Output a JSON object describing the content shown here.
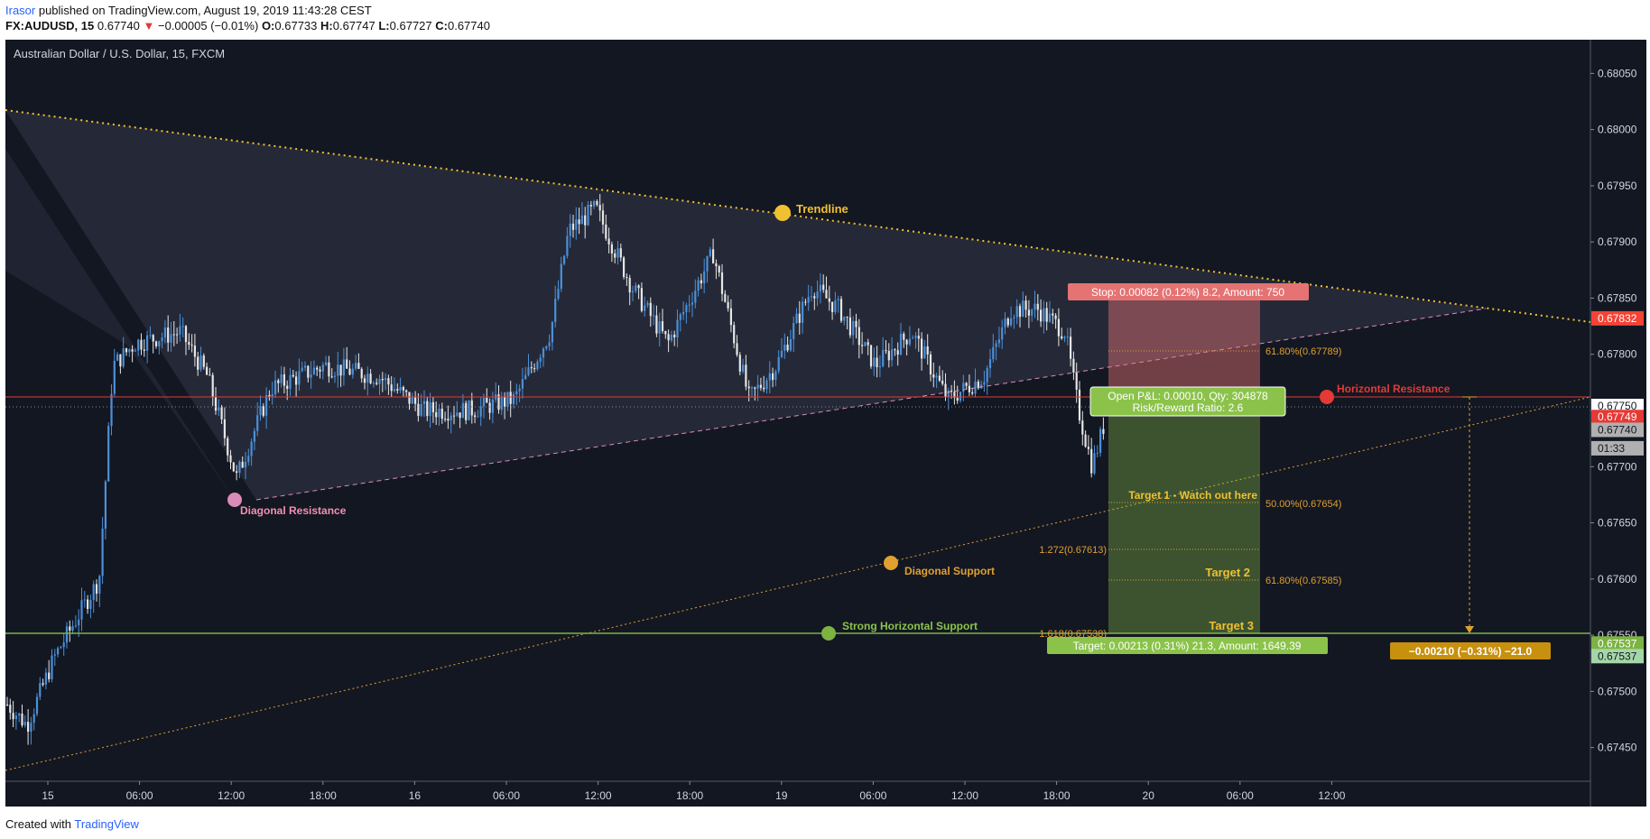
{
  "header": {
    "user": "Irasor",
    "published": " published on TradingView.com, August 19, 2019 11:43:28 CEST",
    "symbol": "FX:AUDUSD, 15",
    "last": "0.67740",
    "change_arrow": "▼",
    "change": "−0.00005 (−0.01%)",
    "open_label": "O:",
    "open": "0.67733",
    "high_label": "H:",
    "high": "0.67747",
    "low_label": "L:",
    "low": "0.67727",
    "close_label": "C:",
    "close": "0.67740"
  },
  "footer": {
    "created": "Created with",
    "brand": "TradingView"
  },
  "colors": {
    "background": "#131722",
    "up": "#4a90d9",
    "down": "#e6e6e6",
    "trendline": "#f0c030",
    "resistance": "#e53935",
    "support": "#7cb342",
    "diagonal": "#d98cb8",
    "grid_axis": "#d0d0d0"
  },
  "chart_data": {
    "type": "candlestick",
    "title": "Australian Dollar / U.S. Dollar, 15, FXCM",
    "y_axis": {
      "ylim": [
        0.6742,
        0.6808
      ],
      "ticks": [
        "0.68050",
        "0.68000",
        "0.67950",
        "0.67900",
        "0.67850",
        "0.67800",
        "0.67750",
        "0.67700",
        "0.67650",
        "0.67600",
        "0.67550",
        "0.67500",
        "0.67450"
      ],
      "tick_values": [
        0.6805,
        0.68,
        0.6795,
        0.679,
        0.6785,
        0.678,
        0.6775,
        0.677,
        0.6765,
        0.676,
        0.6755,
        0.675,
        0.6745
      ]
    },
    "x_axis": {
      "ticks": [
        "15",
        "06:00",
        "12:00",
        "18:00",
        "16",
        "06:00",
        "12:00",
        "18:00",
        "19",
        "06:00",
        "12:00",
        "18:00",
        "20",
        "06:00",
        "12:00"
      ]
    },
    "price_labels": [
      {
        "text": "0.67832",
        "value": 0.67832,
        "color": "#f44336"
      },
      {
        "text": "0.67750",
        "value": 0.6775,
        "color": "#ffffff"
      },
      {
        "text": "0.67749",
        "value": 0.67749,
        "color": "#e53935"
      },
      {
        "text": "0.67740",
        "value": 0.6774,
        "color": "#b0b0b0"
      },
      {
        "text": "01:33",
        "value": 0.67726,
        "color": "#b0b0b0"
      },
      {
        "text": "0.67537",
        "value": 0.67537,
        "color": "#7cb342"
      },
      {
        "text": "0.67537",
        "value": 0.67537,
        "color": "#a5d6a7"
      }
    ],
    "annotations": {
      "trendline": "Trendline",
      "diagonal_resistance": "Diagonal Resistance",
      "horizontal_resistance": "Horizontal Resistance",
      "diagonal_support": "Diagonal Support",
      "strong_horizontal_support": "Strong Horizontal Support",
      "target1": "Target 1 - Watch out here",
      "target2": "Target 2",
      "target3": "Target 3",
      "fib_6180_upper": "61.80%(0.67789)",
      "fib_5000": "50.00%(0.67654)",
      "fib_1272": "1.272(0.67613)",
      "fib_6180_lower": "61.80%(0.67585)",
      "fib_1618": "1.618(0.67538)",
      "stop_box": "Stop: 0.00082 (0.12%) 8.2, Amount: 750",
      "pnl_line1": "Open P&L: 0.00010, Qty: 304878",
      "pnl_line2": "Risk/Reward Ratio: 2.6",
      "target_box": "Target: 0.00213 (0.31%) 21.3, Amount: 1649.39",
      "measure_box": "−0.00210 (−0.31%) −21.0"
    },
    "levels": {
      "horizontal_resistance": 0.6775,
      "horizontal_support": 0.67537,
      "position_entry": 0.6775,
      "position_stop": 0.67832,
      "position_target": 0.67537
    }
  }
}
